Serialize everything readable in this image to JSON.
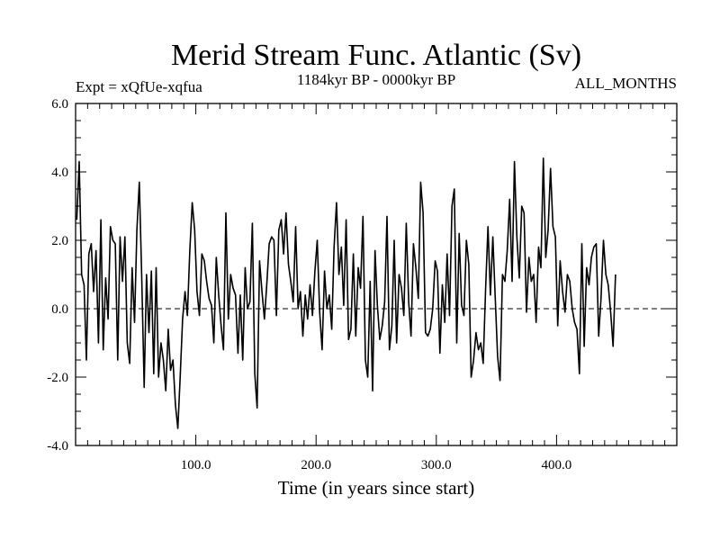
{
  "chart_data": {
    "type": "line",
    "title": "Merid Stream Func. Atlantic (Sv)",
    "subtitle": "1184kyr BP - 0000kyr BP",
    "expt_label": "Expt = xQfUe-xqfua",
    "months_label": "ALL_MONTHS",
    "xlabel": "Time (in years since start)",
    "ylabel": "",
    "xlim": [
      0,
      500
    ],
    "ylim": [
      -4,
      6
    ],
    "x_ticks": [
      100,
      200,
      300,
      400
    ],
    "x_tick_labels": [
      "100.0",
      "200.0",
      "300.0",
      "400.0"
    ],
    "y_ticks": [
      -4,
      -2,
      0,
      2,
      4,
      6
    ],
    "y_tick_labels": [
      "-4.0",
      "-2.0",
      "0.0",
      "2.0",
      "4.0",
      "6.0"
    ],
    "zero_line": "dashed",
    "series": [
      {
        "name": "Merid Stream Func. Atlantic",
        "x_start": 1,
        "x_step": 2,
        "values": [
          2.6,
          4.3,
          1.0,
          0.7,
          -1.5,
          1.6,
          1.9,
          0.5,
          1.7,
          -1.0,
          2.6,
          -1.2,
          0.9,
          -0.3,
          2.4,
          2.0,
          1.9,
          -1.5,
          2.1,
          0.8,
          2.1,
          -1.0,
          -1.6,
          1.2,
          -0.4,
          2.3,
          3.7,
          0.9,
          -2.3,
          1.0,
          -0.7,
          1.1,
          -1.9,
          1.2,
          -2.0,
          -1.0,
          -1.5,
          -2.4,
          -0.6,
          -1.8,
          -1.5,
          -2.8,
          -3.5,
          -2.0,
          -0.3,
          0.5,
          -0.2,
          1.7,
          3.1,
          2.3,
          0.5,
          -0.2,
          1.6,
          1.4,
          0.8,
          0.3,
          0.1,
          -1.0,
          1.5,
          0.4,
          -0.5,
          -1.2,
          2.8,
          -0.3,
          1.0,
          0.6,
          0.4,
          -1.3,
          0.4,
          -1.5,
          1.2,
          0.0,
          0.2,
          2.5,
          -1.9,
          -2.9,
          1.4,
          0.5,
          -0.3,
          0.7,
          1.9,
          2.1,
          2.0,
          -0.2,
          2.3,
          2.6,
          1.6,
          2.8,
          1.3,
          0.8,
          0.2,
          2.4,
          0.0,
          0.5,
          -0.8,
          0.4,
          -0.3,
          0.7,
          -0.2,
          1.1,
          2.0,
          -0.1,
          -1.2,
          1.1,
          0.0,
          0.4,
          -0.6,
          1.8,
          3.1,
          1.0,
          1.8,
          0.1,
          2.6,
          -0.9,
          -0.6,
          1.6,
          -0.8,
          1.2,
          0.6,
          2.7,
          -1.5,
          -2.0,
          0.8,
          -2.4,
          1.7,
          0.1,
          -0.9,
          -0.5,
          0.2,
          2.7,
          -1.2,
          -0.5,
          2.0,
          -1.0,
          1.0,
          0.6,
          -0.2,
          2.5,
          0.2,
          -0.8,
          1.9,
          1.2,
          0.3,
          3.7,
          2.8,
          -0.7,
          -0.8,
          -0.6,
          0.0,
          1.4,
          1.1,
          -1.3,
          0.7,
          -0.4,
          1.6,
          -0.2,
          3.0,
          3.5,
          -1.0,
          2.2,
          0.1,
          -0.2,
          2.0,
          1.3,
          -2.0,
          -1.5,
          -0.7,
          -1.2,
          -1.0,
          -1.6,
          0.6,
          2.4,
          0.4,
          2.1,
          0.3,
          -1.4,
          -2.1,
          1.0,
          0.8,
          1.7,
          3.2,
          0.8,
          4.3,
          2.1,
          0.9,
          3.0,
          2.8,
          -0.1,
          1.5,
          0.8,
          1.0,
          -0.4,
          1.8,
          1.2,
          4.4,
          1.5,
          2.3,
          4.1,
          2.4,
          2.1,
          -0.5,
          1.4,
          0.5,
          -0.1,
          1.0,
          0.8,
          0.0,
          -0.4,
          -0.6,
          -1.9,
          1.9,
          -1.1,
          1.2,
          0.7,
          1.5,
          1.8,
          1.9,
          -0.8,
          0.3,
          2.0,
          1.0,
          0.7,
          -0.1,
          -1.1,
          1.0
        ]
      }
    ]
  }
}
